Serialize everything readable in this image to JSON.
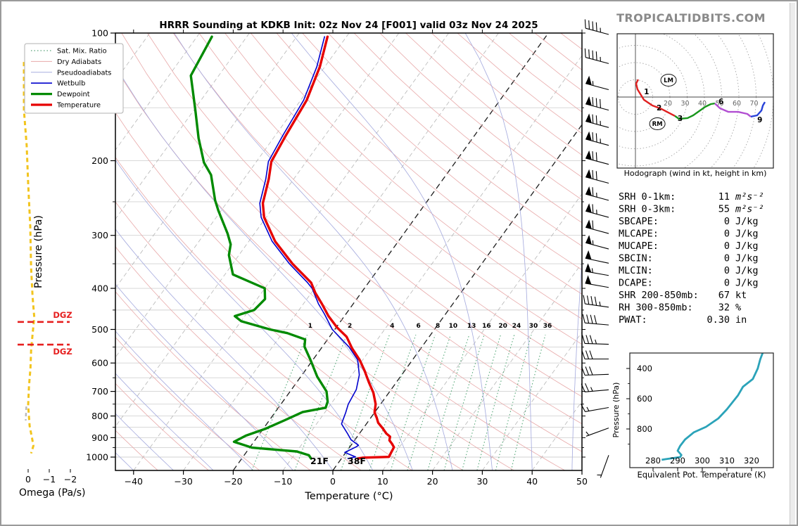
{
  "title": "HRRR Sounding at KDKB Init: 02z Nov 24 [F001] valid 03z Nov 24 2025",
  "watermark": "TROPICALTIDBITS.COM",
  "skewt": {
    "xlabel": "Temperature (°C)",
    "ylabel": "Pressure (hPa)",
    "temp_ticks": [
      -40,
      -30,
      -20,
      -10,
      0,
      10,
      20,
      30,
      40,
      50
    ],
    "pressure_ticks": [
      100,
      200,
      300,
      400,
      500,
      600,
      700,
      800,
      900,
      1000
    ],
    "surface_temp_label": "38F",
    "surface_dewpoint_label": "21F",
    "dgz_label": "DGZ",
    "mixing_ratio_values": [
      1,
      2,
      4,
      6,
      8,
      10,
      13,
      16,
      20,
      24,
      30,
      36
    ],
    "legend": [
      {
        "label": "Sat. Mix. Ratio",
        "color": "#2e8b57",
        "width": 1,
        "dash": "1.5,3"
      },
      {
        "label": "Dry Adiabats",
        "color": "#e8a9a9",
        "width": 1,
        "dash": ""
      },
      {
        "label": "Pseudoadiabats",
        "color": "#a8addf",
        "width": 1,
        "dash": ""
      },
      {
        "label": "Wetbulb",
        "color": "#0000cd",
        "width": 1.6,
        "dash": ""
      },
      {
        "label": "Dewpoint",
        "color": "#008a00",
        "width": 3.2,
        "dash": ""
      },
      {
        "label": "Temperature",
        "color": "#e60000",
        "width": 3.2,
        "dash": ""
      }
    ]
  },
  "omega": {
    "label": "Omega (Pa/s)",
    "ticks": [
      "0",
      "−1",
      "−2"
    ]
  },
  "hodograph": {
    "caption": "Hodograph (wind in kt, height in km)",
    "ring_labels": [
      20,
      30,
      40,
      50,
      60,
      70
    ],
    "storm_markers": [
      {
        "label": "LM",
        "u": 19.2,
        "v": 9.8
      },
      {
        "label": "RM",
        "u": 12.7,
        "v": -15.5
      }
    ]
  },
  "stats": {
    "rows": [
      {
        "label": "SRH 0-1km:",
        "value": "11",
        "unit": "m²s⁻²",
        "color": "#000000",
        "math": true
      },
      {
        "label": "SRH 0-3km:",
        "value": "55",
        "unit": "m²s⁻²",
        "color": "#000000",
        "math": true
      },
      {
        "label": "SBCAPE:",
        "value": "0",
        "unit": "J/kg",
        "color": "#000000",
        "math": false
      },
      {
        "label": "MLCAPE:",
        "value": "0",
        "unit": "J/kg",
        "color": "#000000",
        "math": false
      },
      {
        "label": "MUCAPE:",
        "value": "0",
        "unit": "J/kg",
        "color": "#000000",
        "math": false
      },
      {
        "label": "SBCIN:",
        "value": "0",
        "unit": "J/kg",
        "color": "#000000",
        "math": false
      },
      {
        "label": "MLCIN:",
        "value": "0",
        "unit": "J/kg",
        "color": "#000000",
        "math": false
      },
      {
        "label": "DCAPE:",
        "value": "0",
        "unit": "J/kg",
        "color": "#000000",
        "math": false
      },
      {
        "label": "SHR 200-850mb:",
        "value": "67",
        "unit": "kt",
        "color": "#b22222",
        "math": false
      },
      {
        "label": "RH 300-850mb:",
        "value": "32",
        "unit": "%",
        "color": "#b8860b",
        "math": false
      },
      {
        "label": "PWAT:",
        "value": "0.30",
        "unit": "in",
        "color": "#000000",
        "math": false
      }
    ]
  },
  "thetae": {
    "xlabel": "Equivalent Pot. Temperature (K)",
    "ylabel": "Pressure (hPa)",
    "x_ticks": [
      280,
      290,
      300,
      310,
      320
    ],
    "y_ticks": [
      400,
      600,
      800
    ]
  },
  "chart_data": [
    {
      "type": "line",
      "name": "skewt_sounding",
      "title": "HRRR Sounding at KDKB Init: 02z Nov 24 [F001] valid 03z Nov 24 2025",
      "xlabel": "Temperature (°C)",
      "ylabel": "Pressure (hPa)",
      "xlim": [
        -40,
        50
      ],
      "ylim": [
        1050,
        100
      ],
      "dgz_pressures": [
        480,
        543
      ],
      "series": [
        {
          "name": "Temperature",
          "color": "#e60000",
          "points": [
            [
              1008,
              3.3
            ],
            [
              1003,
              4.2
            ],
            [
              999,
              9.3
            ],
            [
              975,
              9.1
            ],
            [
              948,
              8.9
            ],
            [
              930,
              8.0
            ],
            [
              913,
              7.0
            ],
            [
              895,
              6.6
            ],
            [
              880,
              5.4
            ],
            [
              855,
              3.9
            ],
            [
              830,
              2.2
            ],
            [
              808,
              1.2
            ],
            [
              785,
              0.0
            ],
            [
              750,
              -1.0
            ],
            [
              705,
              -3.1
            ],
            [
              665,
              -5.6
            ],
            [
              625,
              -8.1
            ],
            [
              590,
              -10.6
            ],
            [
              554,
              -13.8
            ],
            [
              520,
              -16.6
            ],
            [
              495,
              -19.8
            ],
            [
              465,
              -23.2
            ],
            [
              435,
              -26.3
            ],
            [
              410,
              -29.2
            ],
            [
              388,
              -31.5
            ],
            [
              350,
              -38.0
            ],
            [
              310,
              -44.7
            ],
            [
              272,
              -50.4
            ],
            [
              252,
              -52.7
            ],
            [
              221,
              -55.0
            ],
            [
              201,
              -57.0
            ],
            [
              174,
              -57.9
            ],
            [
              144,
              -58.8
            ],
            [
              120,
              -61.0
            ],
            [
              102,
              -63.8
            ]
          ]
        },
        {
          "name": "Dewpoint",
          "color": "#008a00",
          "points": [
            [
              1008,
              -6.1
            ],
            [
              990,
              -7.0
            ],
            [
              970,
              -10.0
            ],
            [
              950,
              -19.5
            ],
            [
              920,
              -24.0
            ],
            [
              890,
              -22.5
            ],
            [
              858,
              -19.6
            ],
            [
              820,
              -17.0
            ],
            [
              783,
              -14.5
            ],
            [
              765,
              -10.5
            ],
            [
              740,
              -11.0
            ],
            [
              700,
              -12.7
            ],
            [
              646,
              -16.7
            ],
            [
              591,
              -20.4
            ],
            [
              549,
              -23.6
            ],
            [
              528,
              -24.5
            ],
            [
              510,
              -29.0
            ],
            [
              500,
              -33.0
            ],
            [
              478,
              -40.0
            ],
            [
              465,
              -42.0
            ],
            [
              450,
              -39.0
            ],
            [
              424,
              -38.4
            ],
            [
              400,
              -40.0
            ],
            [
              371,
              -48.4
            ],
            [
              334,
              -52.0
            ],
            [
              315,
              -53.2
            ],
            [
              297,
              -55.4
            ],
            [
              262,
              -60.6
            ],
            [
              248,
              -62.7
            ],
            [
              216,
              -67.2
            ],
            [
              202,
              -70.4
            ],
            [
              177,
              -75.0
            ],
            [
              152,
              -79.7
            ],
            [
              126,
              -85.6
            ],
            [
              102,
              -87.0
            ]
          ]
        },
        {
          "name": "Wetbulb",
          "color": "#0000cd",
          "points": [
            [
              1008,
              1.3
            ],
            [
              999,
              2.6
            ],
            [
              975,
              -0.2
            ],
            [
              945,
              1.3
            ],
            [
              938,
              1.5
            ],
            [
              910,
              -0.8
            ],
            [
              880,
              -2.4
            ],
            [
              835,
              -5.0
            ],
            [
              785,
              -5.8
            ],
            [
              750,
              -6.5
            ],
            [
              693,
              -7.0
            ],
            [
              640,
              -8.5
            ],
            [
              590,
              -11.0
            ],
            [
              550,
              -14.6
            ],
            [
              500,
              -20.5
            ],
            [
              460,
              -24.3
            ],
            [
              435,
              -27.0
            ],
            [
              400,
              -30.5
            ],
            [
              388,
              -32.2
            ],
            [
              350,
              -38.6
            ],
            [
              310,
              -45.3
            ],
            [
              272,
              -51.0
            ],
            [
              252,
              -53.3
            ],
            [
              221,
              -55.6
            ],
            [
              201,
              -57.6
            ],
            [
              174,
              -58.5
            ],
            [
              144,
              -59.4
            ],
            [
              120,
              -61.6
            ],
            [
              102,
              -64.4
            ]
          ]
        }
      ],
      "wind_barbs": {
        "unit": "kt",
        "levels": [
          {
            "p": 100,
            "kt": 45,
            "dir": 285
          },
          {
            "p": 118,
            "kt": 45,
            "dir": 285
          },
          {
            "p": 136,
            "kt": 55,
            "dir": 285
          },
          {
            "p": 152,
            "kt": 80,
            "dir": 285
          },
          {
            "p": 167,
            "kt": 75,
            "dir": 285
          },
          {
            "p": 184,
            "kt": 75,
            "dir": 285
          },
          {
            "p": 204,
            "kt": 70,
            "dir": 285
          },
          {
            "p": 226,
            "kt": 70,
            "dir": 285
          },
          {
            "p": 248,
            "kt": 65,
            "dir": 285
          },
          {
            "p": 272,
            "kt": 65,
            "dir": 285
          },
          {
            "p": 297,
            "kt": 60,
            "dir": 285
          },
          {
            "p": 323,
            "kt": 55,
            "dir": 285
          },
          {
            "p": 349,
            "kt": 50,
            "dir": 282
          },
          {
            "p": 373,
            "kt": 55,
            "dir": 280
          },
          {
            "p": 398,
            "kt": 50,
            "dir": 280
          },
          {
            "p": 443,
            "kt": 45,
            "dir": 278
          },
          {
            "p": 488,
            "kt": 40,
            "dir": 275
          },
          {
            "p": 542,
            "kt": 35,
            "dir": 272
          },
          {
            "p": 587,
            "kt": 30,
            "dir": 270
          },
          {
            "p": 638,
            "kt": 30,
            "dir": 268
          },
          {
            "p": 694,
            "kt": 25,
            "dir": 265
          },
          {
            "p": 764,
            "kt": 15,
            "dir": 260
          },
          {
            "p": 854,
            "kt": 5,
            "dir": 250
          },
          {
            "p": 990,
            "kt": 3,
            "dir": 200
          }
        ]
      }
    },
    {
      "type": "line",
      "name": "hodograph",
      "units": "kt",
      "ring_interval_kt": 10,
      "max_ring_kt": 70,
      "segments": [
        {
          "layer": "0-3 km",
          "color": "#e02020",
          "points": [
            [
              1.6,
              10.2
            ],
            [
              0.4,
              7.8
            ],
            [
              1.2,
              4.5
            ],
            [
              4.9,
              -1.6
            ],
            [
              9.8,
              -4.9
            ],
            [
              15.1,
              -6.9
            ],
            [
              22.9,
              -11.0
            ]
          ]
        },
        {
          "layer": "3-6 km",
          "color": "#18961c",
          "points": [
            [
              22.9,
              -11.0
            ],
            [
              25.3,
              -12.7
            ],
            [
              30.2,
              -12.2
            ],
            [
              33.5,
              -10.6
            ],
            [
              40.4,
              -5.7
            ],
            [
              43.7,
              -4.1
            ],
            [
              46.1,
              -3.7
            ]
          ]
        },
        {
          "layer": "6-9 km",
          "color": "#b24fd2",
          "points": [
            [
              46.1,
              -3.7
            ],
            [
              49.0,
              -6.5
            ],
            [
              53.9,
              -8.6
            ],
            [
              59.6,
              -8.6
            ],
            [
              64.9,
              -9.8
            ],
            [
              66.9,
              -11.4
            ]
          ]
        },
        {
          "layer": "9-12 km",
          "color": "#2742d8",
          "points": [
            [
              66.9,
              -11.4
            ],
            [
              70.6,
              -10.6
            ],
            [
              73.1,
              -7.8
            ],
            [
              73.9,
              -4.9
            ],
            [
              75.1,
              -2.9
            ]
          ]
        }
      ],
      "height_labels": [
        {
          "label": "1",
          "u": 2.9,
          "v": 3.3
        },
        {
          "label": "2",
          "u": 10.2,
          "v": -6.1
        },
        {
          "label": "3",
          "u": 22.4,
          "v": -12.2
        },
        {
          "label": "6",
          "u": 46.1,
          "v": -2.4
        },
        {
          "label": "9",
          "u": 68.6,
          "v": -13.1
        }
      ]
    },
    {
      "type": "line",
      "name": "omega_profile",
      "units": "Pa/s",
      "color": "#f2c41d",
      "points": [
        [
          117,
          0.2
        ],
        [
          152,
          0.2
        ],
        [
          184,
          0.07
        ],
        [
          226,
          0.0
        ],
        [
          286,
          -0.1
        ],
        [
          358,
          -0.14
        ],
        [
          419,
          -0.21
        ],
        [
          468,
          -0.29
        ],
        [
          513,
          -0.21
        ],
        [
          560,
          -0.14
        ],
        [
          617,
          -0.11
        ],
        [
          680,
          -0.04
        ],
        [
          755,
          0.0
        ],
        [
          844,
          -0.07
        ],
        [
          900,
          -0.18
        ],
        [
          940,
          -0.25
        ],
        [
          980,
          -0.14
        ]
      ],
      "gray_points": [
        [
          760,
          0.02
        ],
        [
          820,
          0.05
        ]
      ]
    },
    {
      "type": "line",
      "name": "theta_e_profile",
      "xlabel": "Equivalent Pot. Temperature (K)",
      "ylabel": "Pressure (hPa)",
      "color": "#2ba3b9",
      "points": [
        [
          1004,
          283.5
        ],
        [
          1000,
          285.0
        ],
        [
          986,
          291.0
        ],
        [
          972,
          291.5
        ],
        [
          944,
          290.0
        ],
        [
          912,
          291.0
        ],
        [
          870,
          293.0
        ],
        [
          823,
          296.5
        ],
        [
          786,
          301.5
        ],
        [
          730,
          306.5
        ],
        [
          670,
          310.0
        ],
        [
          577,
          314.5
        ],
        [
          521,
          316.5
        ],
        [
          470,
          320.5
        ],
        [
          400,
          322.5
        ],
        [
          340,
          323.5
        ],
        [
          297,
          324.5
        ]
      ]
    },
    {
      "type": "table",
      "name": "severe_indices",
      "rows": [
        [
          "SRH 0-1km:",
          "11 m²s⁻²"
        ],
        [
          "SRH 0-3km:",
          "55 m²s⁻²"
        ],
        [
          "SBCAPE:",
          "0 J/kg"
        ],
        [
          "MLCAPE:",
          "0 J/kg"
        ],
        [
          "MUCAPE:",
          "0 J/kg"
        ],
        [
          "SBCIN:",
          "0 J/kg"
        ],
        [
          "MLCIN:",
          "0 J/kg"
        ],
        [
          "DCAPE:",
          "0 J/kg"
        ],
        [
          "SHR 200-850mb:",
          "67 kt"
        ],
        [
          "RH 300-850mb:",
          "32 %"
        ],
        [
          "PWAT:",
          "0.30 in"
        ]
      ]
    }
  ]
}
